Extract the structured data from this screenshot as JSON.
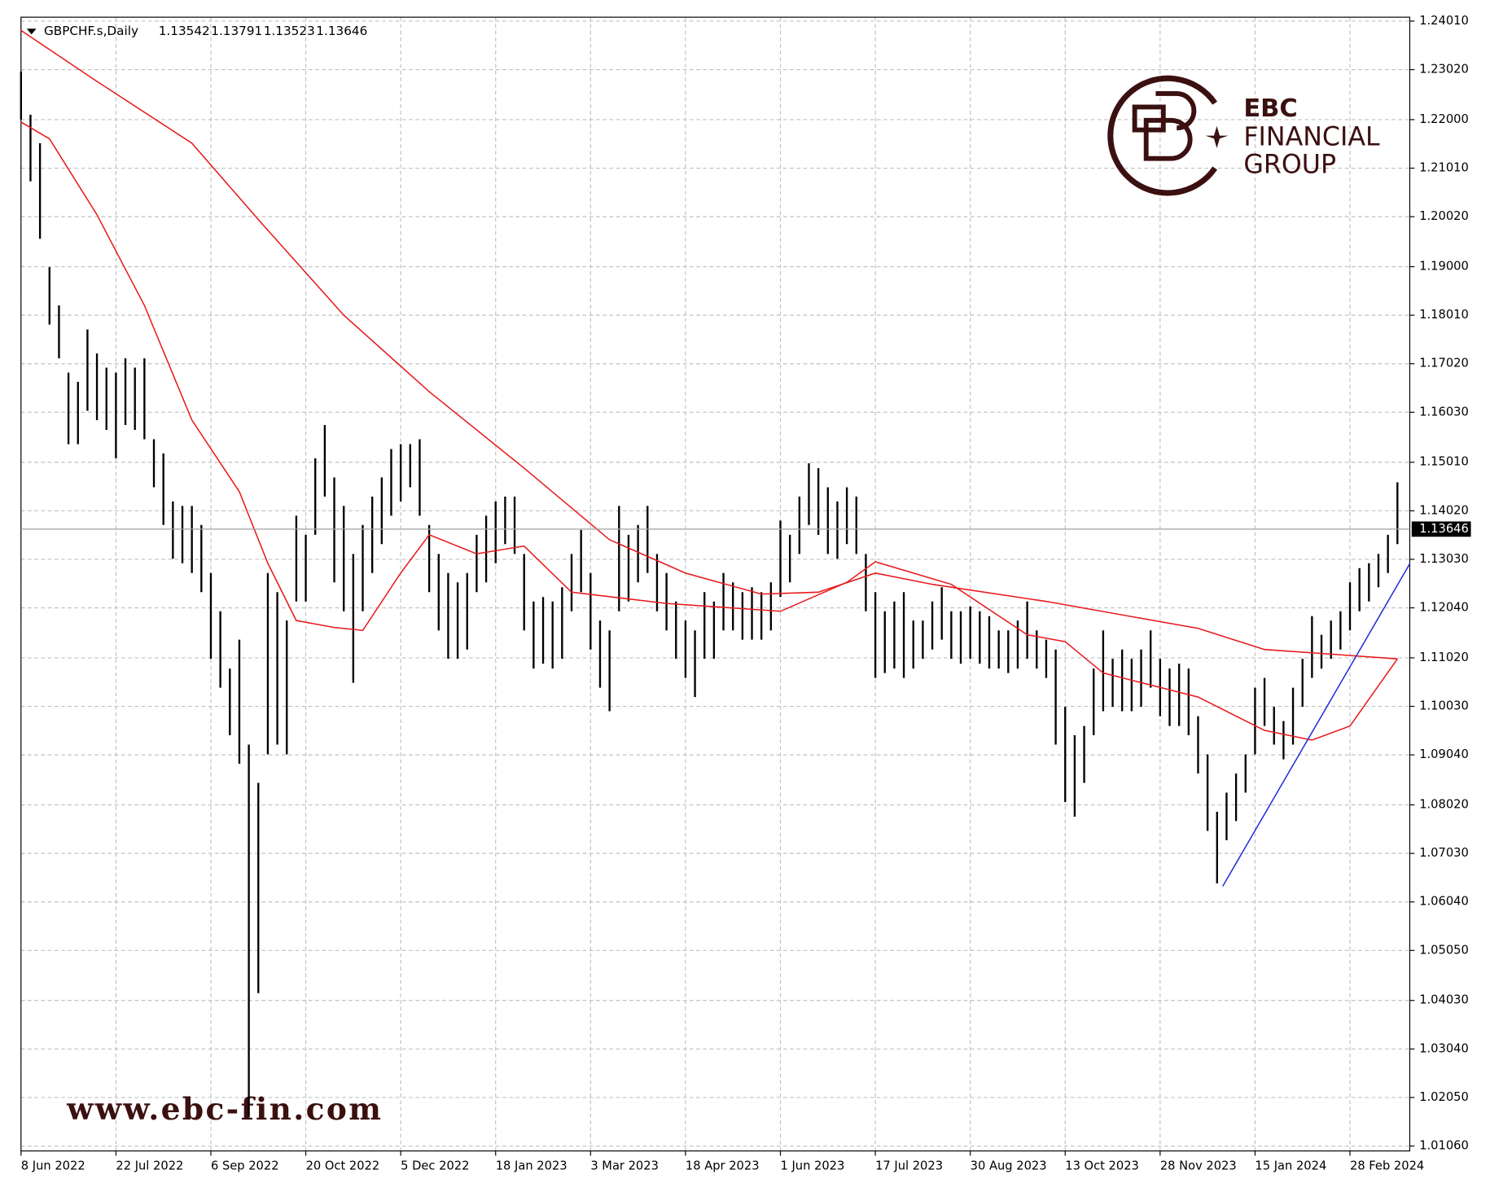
{
  "chart_data": {
    "type": "ohlc",
    "title": "GBPCHF.s,Daily",
    "header_values": [
      1.13542,
      1.13791,
      1.13523,
      1.13646
    ],
    "last_price": 1.13646,
    "bar_color": "#000000",
    "grid": true,
    "ylim": [
      1.0096,
      1.2409
    ],
    "yticks": [
      {
        "value": 1.2401,
        "label": "1.24010"
      },
      {
        "value": 1.2302,
        "label": "1.23020"
      },
      {
        "value": 1.22,
        "label": "1.22000"
      },
      {
        "value": 1.2101,
        "label": "1.21010"
      },
      {
        "value": 1.2002,
        "label": "1.20020"
      },
      {
        "value": 1.19,
        "label": "1.19000"
      },
      {
        "value": 1.1801,
        "label": "1.18010"
      },
      {
        "value": 1.1702,
        "label": "1.17020"
      },
      {
        "value": 1.1603,
        "label": "1.16030"
      },
      {
        "value": 1.1501,
        "label": "1.15010"
      },
      {
        "value": 1.1402,
        "label": "1.14020"
      },
      {
        "value": 1.1303,
        "label": "1.13030"
      },
      {
        "value": 1.1204,
        "label": "1.12040"
      },
      {
        "value": 1.1102,
        "label": "1.11020"
      },
      {
        "value": 1.1003,
        "label": "1.10030"
      },
      {
        "value": 1.0904,
        "label": "1.09040"
      },
      {
        "value": 1.0802,
        "label": "1.08020"
      },
      {
        "value": 1.0703,
        "label": "1.07030"
      },
      {
        "value": 1.0604,
        "label": "1.06040"
      },
      {
        "value": 1.0505,
        "label": "1.05050"
      },
      {
        "value": 1.0403,
        "label": "1.04030"
      },
      {
        "value": 1.0304,
        "label": "1.03040"
      },
      {
        "value": 1.0205,
        "label": "1.02050"
      },
      {
        "value": 1.0106,
        "label": "1.01060"
      }
    ],
    "xlim": [
      0,
      146.3
    ],
    "xticks": [
      {
        "value": 0,
        "label": "8 Jun 2022"
      },
      {
        "value": 10,
        "label": "22 Jul 2022"
      },
      {
        "value": 20,
        "label": "6 Sep 2022"
      },
      {
        "value": 30,
        "label": "20 Oct 2022"
      },
      {
        "value": 40,
        "label": "5 Dec 2022"
      },
      {
        "value": 50,
        "label": "18 Jan 2023"
      },
      {
        "value": 60,
        "label": "3 Mar 2023"
      },
      {
        "value": 70,
        "label": "18 Apr 2023"
      },
      {
        "value": 80,
        "label": "1 Jun 2023"
      },
      {
        "value": 90,
        "label": "17 Jul 2023"
      },
      {
        "value": 100,
        "label": "30 Aug 2023"
      },
      {
        "value": 110,
        "label": "13 Oct 2023"
      },
      {
        "value": 120,
        "label": "28 Nov 2023"
      },
      {
        "value": 130,
        "label": "15 Jan 2024"
      },
      {
        "value": 140,
        "label": "28 Feb 2024"
      }
    ],
    "high": [
      1.2298,
      1.221,
      1.2152,
      1.1899,
      1.1821,
      1.1684,
      1.1665,
      1.1772,
      1.1723,
      1.1694,
      1.1684,
      1.1713,
      1.1694,
      1.1713,
      1.1548,
      1.1519,
      1.1421,
      1.1412,
      1.1412,
      1.1373,
      1.1275,
      1.1197,
      1.108,
      1.1139,
      1.0925,
      1.0847,
      1.1275,
      1.1236,
      1.1178,
      1.1392,
      1.1353,
      1.1509,
      1.1577,
      1.147,
      1.1412,
      1.1314,
      1.1373,
      1.1431,
      1.147,
      1.1528,
      1.1538,
      1.1538,
      1.1548,
      1.1373,
      1.1314,
      1.1275,
      1.1256,
      1.1275,
      1.1353,
      1.1392,
      1.1421,
      1.1431,
      1.1431,
      1.1314,
      1.1217,
      1.1226,
      1.1217,
      1.1246,
      1.1314,
      1.1363,
      1.1275,
      1.1178,
      1.1158,
      1.1412,
      1.1353,
      1.1373,
      1.1412,
      1.1314,
      1.1275,
      1.1217,
      1.1178,
      1.1158,
      1.1236,
      1.1217,
      1.1275,
      1.1256,
      1.1236,
      1.1246,
      1.1236,
      1.1256,
      1.1382,
      1.1353,
      1.1431,
      1.1499,
      1.1489,
      1.145,
      1.1421,
      1.145,
      1.1431,
      1.1314,
      1.1236,
      1.1197,
      1.1217,
      1.1236,
      1.1178,
      1.1178,
      1.1217,
      1.1246,
      1.1197,
      1.1197,
      1.1207,
      1.1197,
      1.1187,
      1.1158,
      1.1158,
      1.1178,
      1.1217,
      1.1158,
      1.1139,
      1.1119,
      1.1002,
      1.0944,
      1.0963,
      1.108,
      1.1158,
      1.11,
      1.1119,
      1.11,
      1.1119,
      1.1158,
      1.11,
      1.108,
      1.109,
      1.108,
      1.0983,
      1.0905,
      1.0788,
      1.0827,
      1.0866,
      1.0905,
      1.1041,
      1.1061,
      1.1002,
      1.0973,
      1.1041,
      1.11,
      1.1187,
      1.1149,
      1.1178,
      1.1197,
      1.1256,
      1.1285,
      1.1295,
      1.1314,
      1.1353,
      1.146
    ],
    "low": [
      1.22,
      1.2074,
      1.1957,
      1.1782,
      1.1713,
      1.1538,
      1.1538,
      1.1606,
      1.1587,
      1.1567,
      1.1509,
      1.1577,
      1.1567,
      1.1548,
      1.145,
      1.1373,
      1.1304,
      1.1295,
      1.1275,
      1.1236,
      1.11,
      1.1041,
      1.0944,
      1.0886,
      1.0165,
      1.0418,
      1.0905,
      1.0925,
      1.0905,
      1.1217,
      1.1217,
      1.1353,
      1.1431,
      1.1256,
      1.1197,
      1.1051,
      1.1197,
      1.1275,
      1.1334,
      1.1392,
      1.1421,
      1.145,
      1.1392,
      1.1236,
      1.1158,
      1.11,
      1.11,
      1.1119,
      1.1236,
      1.1256,
      1.1295,
      1.1334,
      1.1314,
      1.1158,
      1.108,
      1.109,
      1.108,
      1.11,
      1.1197,
      1.1236,
      1.1119,
      1.1041,
      1.0993,
      1.1197,
      1.1217,
      1.1256,
      1.1275,
      1.1197,
      1.1158,
      1.11,
      1.1061,
      1.1022,
      1.11,
      1.11,
      1.1158,
      1.1158,
      1.1139,
      1.1139,
      1.1139,
      1.1158,
      1.1226,
      1.1256,
      1.1314,
      1.1373,
      1.1353,
      1.1314,
      1.1304,
      1.1334,
      1.1314,
      1.1197,
      1.1061,
      1.1071,
      1.108,
      1.1061,
      1.108,
      1.11,
      1.1119,
      1.1139,
      1.11,
      1.109,
      1.11,
      1.109,
      1.108,
      1.108,
      1.1071,
      1.108,
      1.11,
      1.108,
      1.1061,
      1.0925,
      1.0808,
      1.0778,
      1.0847,
      1.0944,
      1.0993,
      1.1002,
      1.0993,
      1.0993,
      1.1002,
      1.1041,
      1.0983,
      1.0963,
      1.0963,
      1.0944,
      1.0866,
      1.0749,
      1.0642,
      1.073,
      1.0769,
      1.0827,
      1.0905,
      1.0963,
      1.0925,
      1.0895,
      1.0925,
      1.1002,
      1.1061,
      1.108,
      1.11,
      1.1119,
      1.1158,
      1.1197,
      1.1217,
      1.1246,
      1.1275,
      1.1334
    ],
    "lines": [
      {
        "color": "#e8191b",
        "x": [
          0,
          8,
          18,
          25,
          34,
          43,
          53,
          62,
          70,
          78,
          84,
          90,
          96,
          108,
          124,
          131,
          145
        ],
        "values": [
          1.2382,
          1.2278,
          1.2152,
          1.1996,
          1.1801,
          1.1645,
          1.1489,
          1.1343,
          1.1275,
          1.1232,
          1.1236,
          1.1275,
          1.1252,
          1.1217,
          1.1162,
          1.1119,
          1.11
        ]
      },
      {
        "color": "#e8191b",
        "x": [
          0,
          3,
          8,
          13,
          18,
          23,
          26,
          29,
          33,
          36,
          40,
          43,
          48,
          53,
          58,
          68,
          80,
          87,
          90,
          98,
          106,
          110,
          114,
          124,
          131,
          136,
          140,
          145
        ],
        "values": [
          1.2195,
          1.2161,
          1.2006,
          1.1821,
          1.1587,
          1.1441,
          1.1295,
          1.1178,
          1.1164,
          1.1158,
          1.1275,
          1.1353,
          1.1314,
          1.133,
          1.1236,
          1.1213,
          1.1197,
          1.1256,
          1.1298,
          1.1252,
          1.1149,
          1.1135,
          1.1071,
          1.1022,
          1.0954,
          1.0934,
          1.0963,
          1.11
        ]
      },
      {
        "color": "#1f2fd6",
        "x": [
          126.6,
          146.3
        ],
        "values": [
          1.0636,
          1.1294
        ]
      }
    ]
  },
  "logo": {
    "line1": "EBC",
    "line2": "FINANCIAL",
    "line3": "GROUP"
  },
  "watermark": "www.ebc-fin.com"
}
